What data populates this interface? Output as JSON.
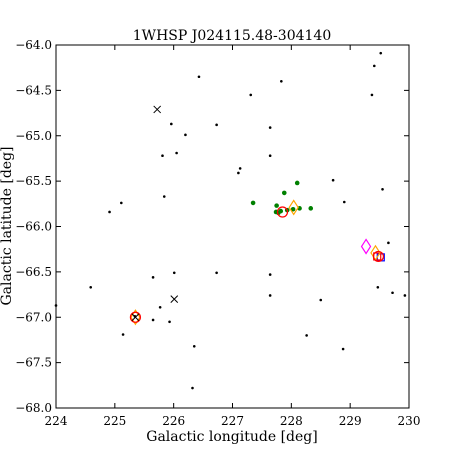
{
  "chart_data": {
    "type": "scatter",
    "title": "1WHSP J024115.48-304140",
    "xlabel": "Galactic longitude [deg]",
    "ylabel": "Galactic latitude [deg]",
    "xlim": [
      224,
      230
    ],
    "ylim": [
      -68.0,
      -64.0
    ],
    "x_ticks": [
      224,
      225,
      226,
      227,
      228,
      229,
      230
    ],
    "x_tick_labels": [
      "224",
      "225",
      "226",
      "227",
      "228",
      "229",
      "230"
    ],
    "y_ticks": [
      -64.0,
      -64.5,
      -65.0,
      -65.5,
      -66.0,
      -66.5,
      -67.0,
      -67.5,
      -68.0
    ],
    "y_tick_labels": [
      "−64.0",
      "−64.5",
      "−65.0",
      "−65.5",
      "−66.0",
      "−66.5",
      "−67.0",
      "−67.5",
      "−68.0"
    ],
    "grid": false,
    "colors": {
      "black": "#000000",
      "green": "#008000",
      "red": "#ff0000",
      "orange": "#ffa500",
      "magenta": "#ff00ff",
      "blue": "#0000ff"
    },
    "series": [
      {
        "marker": "dot",
        "color": "#000000",
        "points": [
          [
            224.0,
            -66.87
          ],
          [
            224.59,
            -66.67
          ],
          [
            224.91,
            -65.84
          ],
          [
            225.11,
            -65.74
          ],
          [
            225.14,
            -67.19
          ],
          [
            225.34,
            -66.99
          ],
          [
            225.65,
            -66.56
          ],
          [
            225.65,
            -67.03
          ],
          [
            225.77,
            -66.89
          ],
          [
            225.81,
            -65.22
          ],
          [
            225.84,
            -65.67
          ],
          [
            225.93,
            -67.05
          ],
          [
            225.96,
            -64.87
          ],
          [
            226.01,
            -66.51
          ],
          [
            226.05,
            -65.19
          ],
          [
            226.35,
            -67.32
          ],
          [
            226.2,
            -64.99
          ],
          [
            226.43,
            -64.35
          ],
          [
            226.73,
            -64.88
          ],
          [
            226.73,
            -66.51
          ],
          [
            227.1,
            -65.41
          ],
          [
            227.13,
            -65.36
          ],
          [
            227.31,
            -64.55
          ],
          [
            227.64,
            -66.53
          ],
          [
            227.64,
            -66.76
          ],
          [
            227.64,
            -64.91
          ],
          [
            227.64,
            -65.22
          ],
          [
            227.83,
            -64.4
          ],
          [
            228.26,
            -67.2
          ],
          [
            228.5,
            -66.81
          ],
          [
            228.71,
            -65.49
          ],
          [
            228.9,
            -65.73
          ],
          [
            228.88,
            -67.35
          ],
          [
            229.37,
            -64.55
          ],
          [
            229.41,
            -64.23
          ],
          [
            229.47,
            -66.67
          ],
          [
            229.52,
            -64.09
          ],
          [
            229.55,
            -65.59
          ],
          [
            229.65,
            -66.18
          ],
          [
            229.72,
            -66.73
          ],
          [
            229.93,
            -66.76
          ],
          [
            226.32,
            -67.78
          ]
        ]
      },
      {
        "marker": "dot",
        "color": "#008000",
        "points": [
          [
            227.35,
            -65.74
          ],
          [
            227.75,
            -65.77
          ],
          [
            227.78,
            -65.85
          ],
          [
            227.82,
            -65.83
          ],
          [
            227.88,
            -65.63
          ],
          [
            227.93,
            -65.82
          ],
          [
            228.03,
            -65.81
          ],
          [
            228.1,
            -65.52
          ],
          [
            228.14,
            -65.8
          ],
          [
            228.33,
            -65.8
          ],
          [
            227.74,
            -65.84
          ]
        ]
      },
      {
        "marker": "x",
        "color": "#000000",
        "points": [
          [
            225.72,
            -64.71
          ],
          [
            226.01,
            -66.8
          ],
          [
            225.35,
            -67.0
          ]
        ]
      },
      {
        "marker": "open-circle",
        "color": "#ff0000",
        "points": [
          [
            227.85,
            -65.84
          ],
          [
            229.48,
            -66.33
          ],
          [
            225.35,
            -67.0
          ]
        ]
      },
      {
        "marker": "open-diamond",
        "color": "#ffa500",
        "points": [
          [
            228.04,
            -65.79
          ],
          [
            225.35,
            -67.0
          ],
          [
            229.43,
            -66.29
          ]
        ]
      },
      {
        "marker": "open-diamond",
        "color": "#ff00ff",
        "points": [
          [
            229.27,
            -66.22
          ]
        ]
      },
      {
        "marker": "open-square",
        "color": "#0000ff",
        "points": [
          [
            229.52,
            -66.34
          ]
        ]
      },
      {
        "marker": "open-square",
        "color": "#ff0000",
        "points": [
          [
            229.46,
            -66.33
          ]
        ]
      }
    ]
  }
}
